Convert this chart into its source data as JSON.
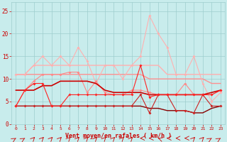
{
  "x": [
    0,
    1,
    2,
    3,
    4,
    5,
    6,
    7,
    8,
    9,
    10,
    11,
    12,
    13,
    14,
    15,
    16,
    17,
    18,
    19,
    20,
    21,
    22,
    23
  ],
  "lines": [
    {
      "y": [
        11,
        11,
        13,
        13,
        13,
        13,
        13,
        13,
        13,
        13,
        13,
        13,
        13,
        13,
        13,
        13,
        13,
        11,
        11,
        11,
        11,
        11,
        11,
        11
      ],
      "color": "#ffb0b0",
      "lw": 1.0,
      "marker": null,
      "zorder": 2
    },
    {
      "y": [
        11,
        11,
        13,
        15,
        13,
        15,
        13,
        17,
        14,
        9,
        13,
        13,
        10,
        13,
        15,
        24,
        20,
        17,
        11,
        11,
        15,
        9,
        5,
        7
      ],
      "color": "#ffb0b0",
      "lw": 0.8,
      "marker": "D",
      "markersize": 2.0,
      "zorder": 3
    },
    {
      "y": [
        11,
        11,
        11,
        11,
        11,
        11,
        11,
        11,
        11,
        11,
        11,
        11,
        11,
        11,
        11,
        10,
        10,
        10,
        10,
        10,
        10,
        10,
        9,
        9
      ],
      "color": "#ff9090",
      "lw": 1.0,
      "marker": null,
      "zorder": 2
    },
    {
      "y": [
        4,
        7.5,
        9.5,
        11,
        11,
        11,
        11.5,
        11.5,
        7,
        9.5,
        7,
        6.5,
        6.5,
        7.5,
        7.5,
        7,
        6.5,
        6.5,
        6.5,
        9,
        6.5,
        6.5,
        6.5,
        7.5
      ],
      "color": "#ff8888",
      "lw": 0.8,
      "marker": "D",
      "markersize": 2.0,
      "zorder": 3
    },
    {
      "y": [
        7.5,
        7.5,
        7.5,
        8.5,
        8.5,
        9.5,
        9.5,
        9.5,
        9.5,
        9.0,
        7.5,
        7.0,
        7.0,
        7.0,
        7.0,
        6.5,
        6.5,
        6.5,
        6.5,
        6.5,
        6.5,
        6.5,
        7.0,
        7.5
      ],
      "color": "#cc0000",
      "lw": 1.2,
      "marker": null,
      "zorder": 4
    },
    {
      "y": [
        4,
        7.5,
        9,
        9,
        4,
        4,
        6.5,
        6.5,
        6.5,
        6.5,
        6.5,
        6.5,
        6.5,
        6.5,
        13,
        6,
        6.5,
        6.5,
        6.5,
        6.5,
        6.5,
        6.5,
        6.5,
        7.5
      ],
      "color": "#ff2222",
      "lw": 0.8,
      "marker": "D",
      "markersize": 2.0,
      "zorder": 5
    },
    {
      "y": [
        4,
        4,
        4,
        4,
        4,
        4,
        4,
        4,
        4,
        4,
        4,
        4,
        4,
        4,
        4,
        3.5,
        3.5,
        3.0,
        3.0,
        3.0,
        2.5,
        2.5,
        3.5,
        4
      ],
      "color": "#880000",
      "lw": 1.0,
      "marker": null,
      "zorder": 2
    },
    {
      "y": [
        4,
        4,
        4,
        4,
        4,
        4,
        4,
        4,
        4,
        4,
        4,
        4,
        4,
        4,
        6.5,
        2.5,
        6.5,
        6.5,
        3,
        3,
        2.5,
        6.5,
        4,
        4
      ],
      "color": "#cc2222",
      "lw": 0.8,
      "marker": "D",
      "markersize": 2.0,
      "zorder": 3
    }
  ],
  "xlabel": "Vent moyen/en rafales ( km/h )",
  "xlim": [
    -0.5,
    23.5
  ],
  "ylim": [
    0,
    27
  ],
  "yticks": [
    0,
    5,
    10,
    15,
    20,
    25
  ],
  "xticks": [
    0,
    1,
    2,
    3,
    4,
    5,
    6,
    7,
    8,
    9,
    10,
    11,
    12,
    13,
    14,
    15,
    16,
    17,
    18,
    19,
    20,
    21,
    22,
    23
  ],
  "bg_color": "#c8ecec",
  "grid_color": "#9dcdcd",
  "tick_color": "#cc0000",
  "label_color": "#cc0000"
}
